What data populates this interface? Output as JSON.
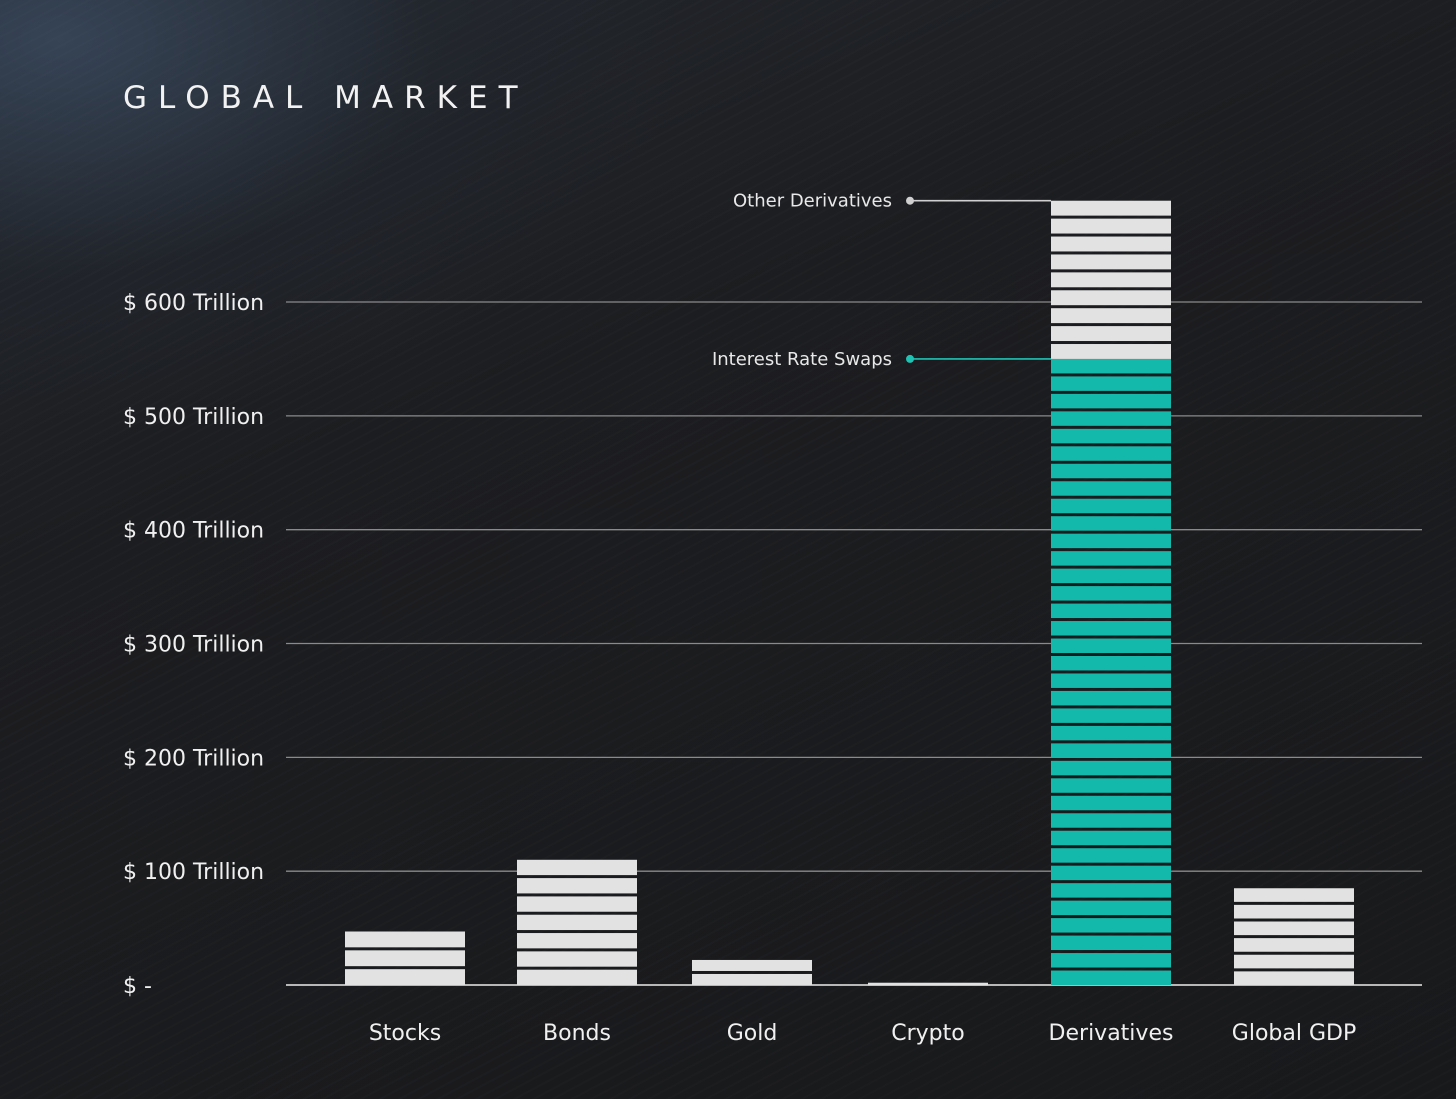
{
  "chart_data": {
    "type": "bar",
    "title": "GLOBAL MARKET",
    "xlabel": "",
    "ylabel": "",
    "categories": [
      "Stocks",
      "Bonds",
      "Gold",
      "Crypto",
      "Derivatives",
      "Global GDP"
    ],
    "series": [
      {
        "values": [
          47,
          110,
          22,
          2,
          550,
          85
        ]
      },
      {
        "values": [
          0,
          0,
          0,
          0,
          139,
          0
        ]
      }
    ],
    "segment_labels": {
      "Derivatives": [
        "Interest Rate Swaps",
        "Other Derivatives"
      ]
    },
    "ylim": [
      0,
      689
    ],
    "yticks": [
      0,
      100,
      200,
      300,
      400,
      500,
      600
    ],
    "ytick_labels": [
      "$ -",
      "$ 100 Trillion",
      "$ 200 Trillion",
      "$ 300 Trillion",
      "$ 400 Trillion",
      "$ 500 Trillion",
      "$ 600 Trillion"
    ],
    "grid": true,
    "legend": "none",
    "annotations": [
      {
        "text": "Other Derivatives",
        "category": "Derivatives",
        "value": 689,
        "color": "#d0d0d0"
      },
      {
        "text": "Interest Rate Swaps",
        "category": "Derivatives",
        "value": 550,
        "color": "#1ec3b4"
      }
    ],
    "colors": {
      "bar": "#e2e2e2",
      "highlight": "#13b9aa",
      "gridline": "#8a8a8a",
      "stripe": "#1a1b1d",
      "axis_text": "#f0f0f0",
      "annotation_swaps": "#1ec3b4",
      "annotation_other": "#c8c8c8"
    }
  }
}
